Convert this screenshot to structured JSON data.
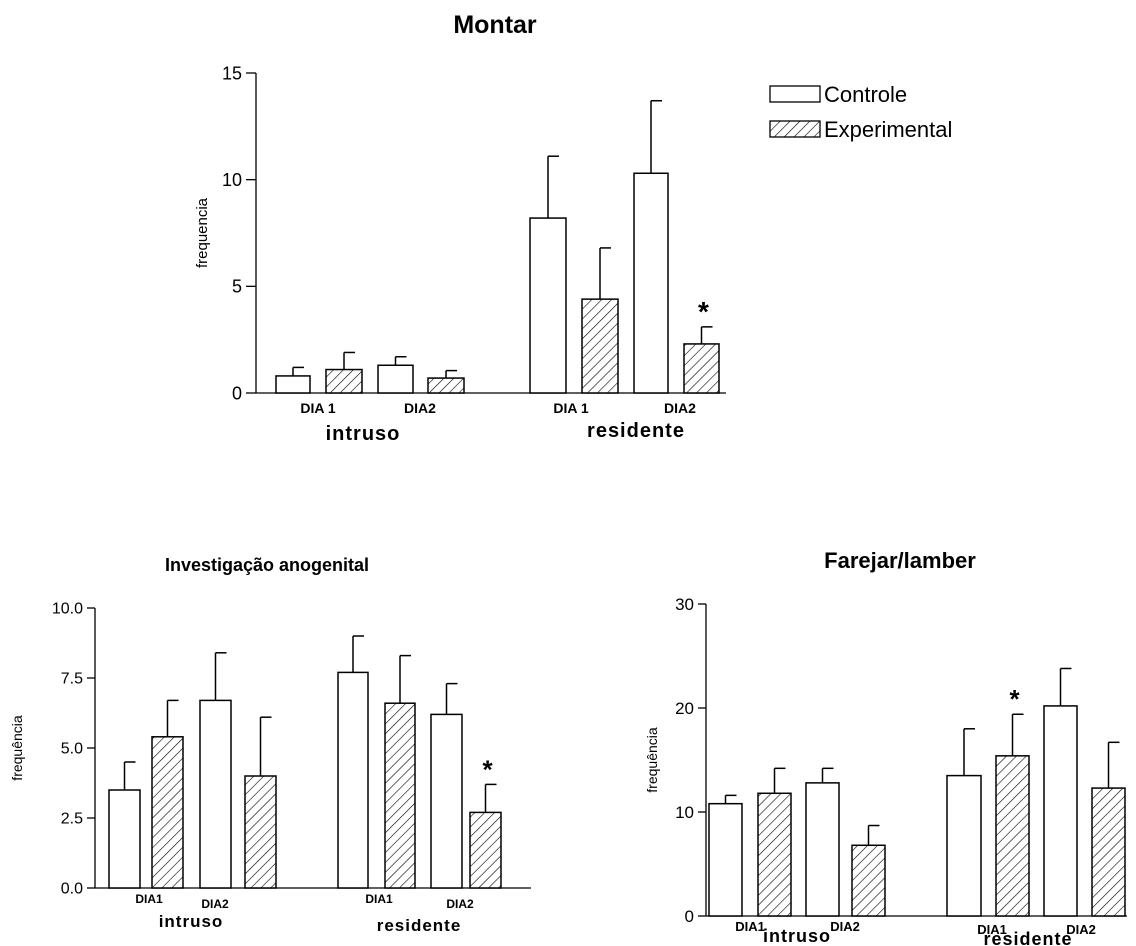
{
  "chart_data": [
    {
      "type": "bar",
      "title": "Montar",
      "ylabel": "frequencia",
      "ylim": [
        0,
        15
      ],
      "yticks": [
        "0",
        "5",
        "10",
        "15"
      ],
      "groups": [
        {
          "label": "intruso",
          "days": [
            "DIA 1",
            "DIA2"
          ]
        },
        {
          "label": "residente",
          "days": [
            "DIA 1",
            "DIA2"
          ]
        }
      ],
      "legend": {
        "position": "top-right",
        "entries": [
          "Controle",
          "Experimental"
        ]
      },
      "series": [
        {
          "name": "Controle",
          "pattern": "none",
          "values": [
            0.8,
            1.3,
            8.2,
            10.3
          ],
          "errors": [
            0.4,
            0.4,
            2.9,
            3.4
          ]
        },
        {
          "name": "Experimental",
          "pattern": "hatched",
          "values": [
            1.1,
            0.7,
            4.4,
            2.3
          ],
          "errors": [
            0.8,
            0.35,
            2.4,
            0.8
          ]
        }
      ],
      "significance": [
        {
          "series": "Experimental",
          "index": 3,
          "mark": "*"
        }
      ]
    },
    {
      "type": "bar",
      "title": "Investigação anogenital",
      "ylabel": "frequência",
      "ylim": [
        0,
        10
      ],
      "yticks": [
        "0.0",
        "2.5",
        "5.0",
        "7.5",
        "10.0"
      ],
      "groups": [
        {
          "label": "intruso",
          "days": [
            "DIA1",
            "DIA2"
          ]
        },
        {
          "label": "residente",
          "days": [
            "DIA1",
            "DIA2"
          ]
        }
      ],
      "series": [
        {
          "name": "Controle",
          "pattern": "none",
          "values": [
            3.5,
            6.7,
            7.7,
            6.2
          ],
          "errors": [
            1.0,
            1.7,
            1.3,
            1.1
          ]
        },
        {
          "name": "Experimental",
          "pattern": "hatched",
          "values": [
            5.4,
            4.0,
            6.6,
            2.7
          ],
          "errors": [
            1.3,
            2.1,
            1.7,
            1.0
          ]
        }
      ],
      "significance": [
        {
          "series": "Experimental",
          "index": 3,
          "mark": "*"
        }
      ]
    },
    {
      "type": "bar",
      "title": "Farejar/lamber",
      "ylabel": "frequência",
      "ylim": [
        0,
        30
      ],
      "yticks": [
        "0",
        "10",
        "20",
        "30"
      ],
      "groups": [
        {
          "label": "intruso",
          "days": [
            "DIA1",
            "DIA2"
          ]
        },
        {
          "label": "residente",
          "days": [
            "DIA1",
            "DIA2"
          ]
        }
      ],
      "series": [
        {
          "name": "Controle",
          "pattern": "none",
          "values": [
            10.8,
            12.8,
            13.5,
            20.2
          ],
          "errors": [
            0.8,
            1.4,
            4.5,
            3.6
          ]
        },
        {
          "name": "Experimental",
          "pattern": "hatched",
          "values": [
            11.8,
            6.8,
            15.4,
            12.3
          ],
          "errors": [
            2.4,
            1.9,
            4.0,
            4.4
          ]
        }
      ],
      "significance": [
        {
          "series": "Experimental",
          "index": 2,
          "mark": "*"
        }
      ]
    }
  ]
}
